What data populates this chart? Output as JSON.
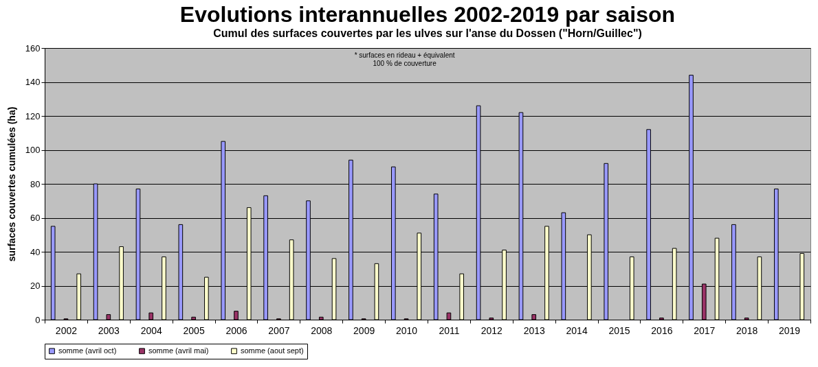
{
  "chart_data": {
    "type": "bar",
    "title": "Evolutions interannuelles 2002-2019 par saison",
    "subtitle": "Cumul des surfaces couvertes par les ulves sur l'anse du Dossen (\"Horn/Guillec\")",
    "ylabel": "surfaces couvertes cumulées (ha)",
    "annotations": [
      "* surfaces en rideau + équivalent",
      "100 % de couverture"
    ],
    "categories": [
      "2002",
      "2003",
      "2004",
      "2005",
      "2006",
      "2007",
      "2008",
      "2009",
      "2010",
      "2011",
      "2012",
      "2013",
      "2014",
      "2015",
      "2016",
      "2017",
      "2018",
      "2019"
    ],
    "series": [
      {
        "name": "somme (avril oct)",
        "color": "#9999ff",
        "values": [
          55,
          80,
          77,
          56,
          105,
          73,
          70,
          94,
          90,
          74,
          126,
          122,
          63,
          92,
          112,
          144,
          56,
          77
        ]
      },
      {
        "name": "somme (avril mai)",
        "color": "#993366",
        "values": [
          0.5,
          3,
          4,
          1.5,
          5,
          0.5,
          1.5,
          0.5,
          0.5,
          4,
          1,
          3,
          0,
          0,
          1,
          21,
          1,
          0
        ]
      },
      {
        "name": "somme (aout sept)",
        "color": "#ffffcc",
        "values": [
          27,
          43,
          37,
          25,
          66,
          47,
          36,
          33,
          51,
          27,
          41,
          55,
          50,
          37,
          42,
          48,
          37,
          39
        ]
      }
    ],
    "ylim": [
      0,
      160
    ],
    "yticks": [
      0,
      20,
      40,
      60,
      80,
      100,
      120,
      140,
      160
    ],
    "grid": "y",
    "legend": "bottom"
  }
}
